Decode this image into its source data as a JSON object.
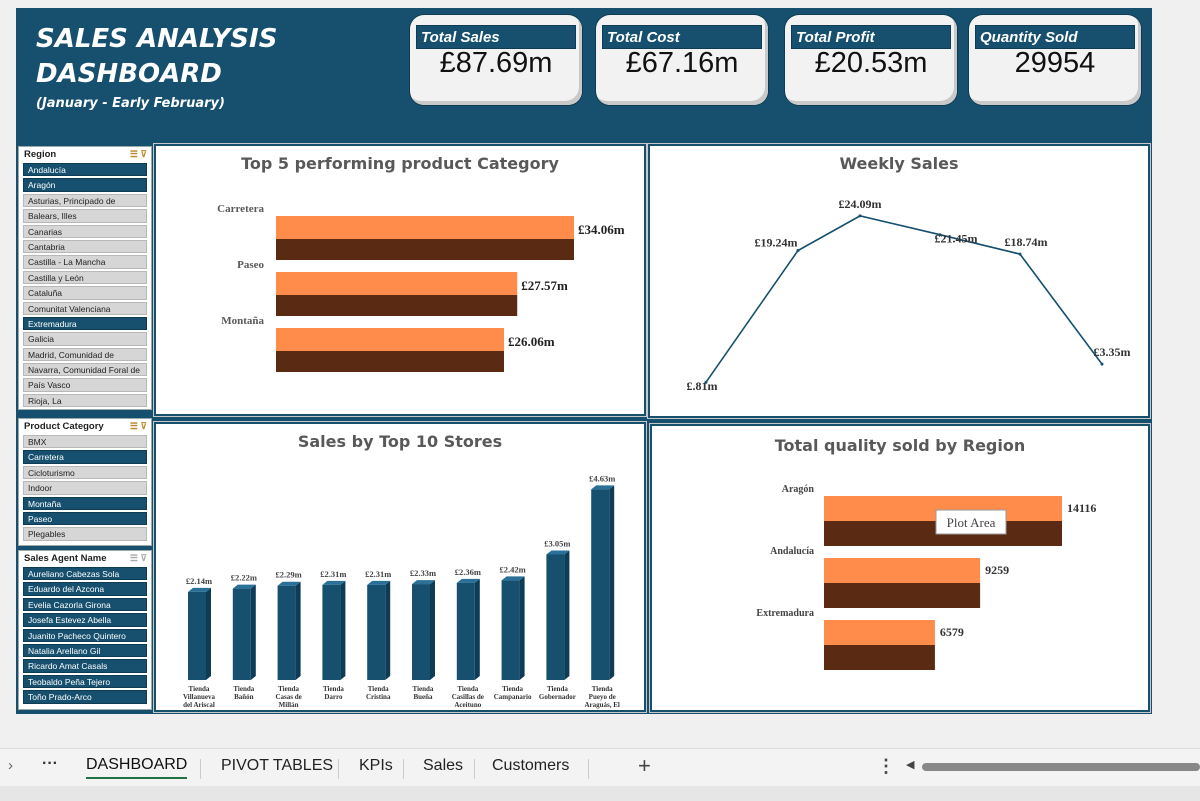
{
  "header": {
    "title_line1": "SALES ANALYSIS",
    "title_line2": "DASHBOARD",
    "subtitle": "(January - Early February)"
  },
  "kpis": [
    {
      "label": "Total Sales",
      "value": "£87.69m"
    },
    {
      "label": "Total Cost",
      "value": "£67.16m"
    },
    {
      "label": "Total Profit",
      "value": "£20.53m"
    },
    {
      "label": "Quantity Sold",
      "value": "29954"
    }
  ],
  "slicers": {
    "region": {
      "title": "Region",
      "items": [
        {
          "label": "Andalucía",
          "selected": true
        },
        {
          "label": "Aragón",
          "selected": true
        },
        {
          "label": "Asturias, Principado de",
          "selected": false
        },
        {
          "label": "Balears, Illes",
          "selected": false
        },
        {
          "label": "Canarias",
          "selected": false
        },
        {
          "label": "Cantabria",
          "selected": false
        },
        {
          "label": "Castilla - La Mancha",
          "selected": false
        },
        {
          "label": "Castilla y León",
          "selected": false
        },
        {
          "label": "Cataluña",
          "selected": false
        },
        {
          "label": "Comunitat Valenciana",
          "selected": false
        },
        {
          "label": "Extremadura",
          "selected": true
        },
        {
          "label": "Galicia",
          "selected": false
        },
        {
          "label": "Madrid, Comunidad de",
          "selected": false
        },
        {
          "label": "Navarra, Comunidad Foral de",
          "selected": false
        },
        {
          "label": "País Vasco",
          "selected": false
        },
        {
          "label": "Rioja, La",
          "selected": false
        }
      ]
    },
    "category": {
      "title": "Product Category",
      "items": [
        {
          "label": "BMX",
          "selected": false
        },
        {
          "label": "Carretera",
          "selected": true
        },
        {
          "label": "Cicloturismo",
          "selected": false
        },
        {
          "label": "Indoor",
          "selected": false
        },
        {
          "label": "Montaña",
          "selected": true
        },
        {
          "label": "Paseo",
          "selected": true
        },
        {
          "label": "Plegables",
          "selected": false
        }
      ]
    },
    "agent": {
      "title": "Sales Agent Name",
      "items": [
        {
          "label": "Aureliano Cabezas Sola",
          "selected": true
        },
        {
          "label": "Eduardo del Azcona",
          "selected": true
        },
        {
          "label": "Evelia Cazorla Girona",
          "selected": true
        },
        {
          "label": "Josefa Estevez Abella",
          "selected": true
        },
        {
          "label": "Juanito Pacheco Quintero",
          "selected": true
        },
        {
          "label": "Natalia Arellano Gil",
          "selected": true
        },
        {
          "label": "Ricardo Amat Casals",
          "selected": true
        },
        {
          "label": "Teobaldo Peña Tejero",
          "selected": true
        },
        {
          "label": "Toño Prado-Arco",
          "selected": true
        }
      ]
    }
  },
  "charts": {
    "top5": {
      "title": "Top 5 performing product Category"
    },
    "weekly": {
      "title": "Weekly Sales"
    },
    "stores": {
      "title": "Sales by Top 10 Stores"
    },
    "region_qty": {
      "title": "Total quality sold by Region",
      "tooltip": "Plot Area"
    }
  },
  "chart_data": [
    {
      "type": "bar",
      "orientation": "horizontal",
      "title": "Top 5 performing product Category",
      "categories": [
        "Carretera",
        "Paseo",
        "Montaña"
      ],
      "values": [
        34.06,
        27.57,
        26.06
      ],
      "data_labels": [
        "£34.06m",
        "£27.57m",
        "£26.06m"
      ],
      "xlim": [
        0,
        40
      ],
      "colors": [
        "#ff8c4b",
        "#5a2a12"
      ]
    },
    {
      "type": "line",
      "title": "Weekly Sales",
      "values": [
        0.81,
        19.24,
        24.09,
        21.45,
        18.74,
        3.35
      ],
      "data_labels": [
        "£.81m",
        "£19.24m",
        "£24.09m",
        "£21.45m",
        "£18.74m",
        "£3.35m"
      ],
      "ylim": [
        0,
        26
      ],
      "color": "#16506e"
    },
    {
      "type": "bar",
      "title": "Sales by Top 10 Stores",
      "categories": [
        "Tienda Villanueva del Ariscal",
        "Tienda Bañón",
        "Tienda Casas de Millán",
        "Tienda Darro",
        "Tienda Cristina",
        "Tienda Bueña",
        "Tienda Casillas de Aceituno",
        "Tienda Campanario",
        "Tienda Gobernador",
        "Tienda Pueyo de Araguás, El"
      ],
      "tick_lines": [
        [
          "Tienda",
          "Villanueva",
          "del Ariscal"
        ],
        [
          "Tienda",
          "Bañón"
        ],
        [
          "Tienda",
          "Casas de",
          "Millán"
        ],
        [
          "Tienda",
          "Darro"
        ],
        [
          "Tienda",
          "Cristina"
        ],
        [
          "Tienda",
          "Bueña"
        ],
        [
          "Tienda",
          "Casillas de",
          "Aceituno"
        ],
        [
          "Tienda",
          "Campanario"
        ],
        [
          "Tienda",
          "Gobernador"
        ],
        [
          "Tienda",
          "Pueyo de",
          "Araguás, El"
        ]
      ],
      "values": [
        2.14,
        2.22,
        2.29,
        2.31,
        2.31,
        2.33,
        2.36,
        2.42,
        3.05,
        4.63
      ],
      "data_labels": [
        "£2.14m",
        "£2.22m",
        "£2.29m",
        "£2.31m",
        "£2.31m",
        "£2.33m",
        "£2.36m",
        "£2.42m",
        "£3.05m",
        "£4.63m"
      ],
      "ylim": [
        0,
        4.8
      ],
      "color": "#16506e"
    },
    {
      "type": "bar",
      "orientation": "horizontal",
      "title": "Total quality sold by Region",
      "categories": [
        "Aragón",
        "Andalucía",
        "Extremadura"
      ],
      "values": [
        14116,
        9259,
        6579
      ],
      "data_labels": [
        "14116",
        "9259",
        "6579"
      ],
      "xlim": [
        0,
        16500
      ],
      "colors": [
        "#ff8c4b",
        "#5a2a12"
      ]
    }
  ],
  "sheet_tabs": [
    {
      "label": "DASHBOARD",
      "active": true
    },
    {
      "label": "PIVOT TABLES",
      "active": false
    },
    {
      "label": "KPIs",
      "active": false
    },
    {
      "label": "Sales",
      "active": false
    },
    {
      "label": "Customers",
      "active": false
    }
  ],
  "tabbar_icons": {
    "prev": "chevron-right-icon",
    "more": "ellipsis-icon",
    "add": "plus-icon",
    "options": "vertical-ellipsis-icon",
    "scroll": "scroll-left-icon"
  }
}
